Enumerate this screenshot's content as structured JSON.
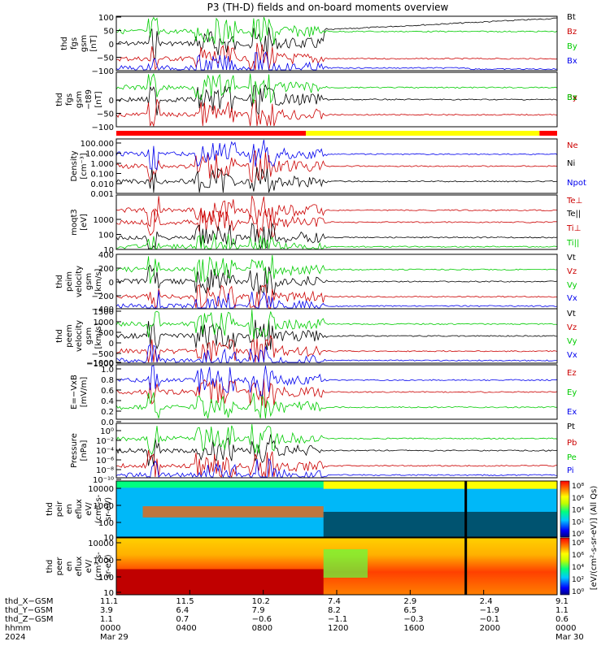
{
  "chart_data": {
    "type": "line",
    "title": "P3 (TH-D) fields and on-board moments overview",
    "x_range": [
      "2024-03-29 00:00",
      "2024-03-30 00:00"
    ],
    "panels": [
      {
        "id": "fgs_gsm",
        "ylabel": [
          "thd",
          "fgs",
          "gsm",
          "[nT]"
        ],
        "yticks": [
          "100",
          "50",
          "0",
          "−50",
          "−100"
        ],
        "legend": [
          {
            "label": "Bt",
            "color": "#000000"
          },
          {
            "label": "Bz",
            "color": "#cc0000"
          },
          {
            "label": "By",
            "color": "#00cc00"
          },
          {
            "label": "Bx",
            "color": "#0000ee"
          }
        ]
      },
      {
        "id": "fgs_gsm_t89",
        "ylabel": [
          "thd",
          "fgs",
          "gsm",
          "−t89",
          "[nT]"
        ],
        "yticks": [
          "0",
          "−50",
          "−100"
        ],
        "legend": [
          {
            "label": "Bx",
            "color": "#000000"
          },
          {
            "label": "By",
            "color": "#cc0000"
          },
          {
            "label": "Bz",
            "color": "#00cc00"
          }
        ]
      },
      {
        "id": "density",
        "ylabel": [
          "Density",
          "[cm⁻³]"
        ],
        "yticks": [
          "100.000",
          "10.000",
          "1.000",
          "0.100",
          "0.010",
          "0.001"
        ],
        "legend": [
          {
            "label": "Ne",
            "color": "#cc0000"
          },
          {
            "label": "Ni",
            "color": "#000000"
          },
          {
            "label": "Npot",
            "color": "#0000ee"
          }
        ]
      },
      {
        "id": "temperature",
        "ylabel": [
          "moqt3",
          "[eV]"
        ],
        "yticks": [
          "1000",
          "100",
          "10"
        ],
        "legend": [
          {
            "label": "Te⊥",
            "color": "#cc0000"
          },
          {
            "label": "Te||",
            "color": "#000000"
          },
          {
            "label": "Ti⊥",
            "color": "#cc0000"
          },
          {
            "label": "Ti||",
            "color": "#00cc00"
          }
        ]
      },
      {
        "id": "peim_velocity",
        "ylabel": [
          "thd",
          "peim",
          "velocity",
          "gsm",
          "[km/s]"
        ],
        "yticks": [
          "400",
          "200",
          "0",
          "−200",
          "−400"
        ],
        "legend": [
          {
            "label": "Vt",
            "color": "#000000"
          },
          {
            "label": "Vz",
            "color": "#cc0000"
          },
          {
            "label": "Vy",
            "color": "#00cc00"
          },
          {
            "label": "Vx",
            "color": "#0000ee"
          }
        ]
      },
      {
        "id": "peem_velocity",
        "ylabel": [
          "thd",
          "peem",
          "velocity",
          "gsm",
          "[km/s]"
        ],
        "yticks": [
          "1500",
          "1000",
          "500",
          "0",
          "−500",
          "−1000",
          "−1500"
        ],
        "legend": [
          {
            "label": "Vt",
            "color": "#000000"
          },
          {
            "label": "Vz",
            "color": "#cc0000"
          },
          {
            "label": "Vy",
            "color": "#00cc00"
          },
          {
            "label": "Vx",
            "color": "#0000ee"
          }
        ]
      },
      {
        "id": "efield",
        "ylabel": [
          "E=−VxB",
          "[mV/m]"
        ],
        "yticks": [
          "1.0",
          "0.8",
          "0.6",
          "0.4",
          "0.2",
          "0.0"
        ],
        "legend": [
          {
            "label": "Ez",
            "color": "#cc0000"
          },
          {
            "label": "Ey",
            "color": "#00cc00"
          },
          {
            "label": "Ex",
            "color": "#0000ee"
          }
        ]
      },
      {
        "id": "pressure",
        "ylabel": [
          "Pressure",
          "[nPa]"
        ],
        "yticks": [
          "10⁰",
          "10⁻²",
          "10⁻⁴",
          "10⁻⁶",
          "10⁻⁸",
          "10⁻¹⁰"
        ],
        "legend": [
          {
            "label": "Pt",
            "color": "#000000"
          },
          {
            "label": "Pb",
            "color": "#cc0000"
          },
          {
            "label": "Pe",
            "color": "#00cc00"
          },
          {
            "label": "Pi",
            "color": "#0000ee"
          }
        ]
      },
      {
        "id": "peir_spec",
        "ylabel": [
          "thd",
          "peir",
          "en",
          "eflux",
          "eV/",
          "(cm²-s-",
          "sr-eV)"
        ],
        "yticks": [
          "10000",
          "1000",
          "100",
          "10"
        ]
      },
      {
        "id": "peer_spec",
        "ylabel": [
          "thd",
          "peer",
          "en",
          "eflux",
          "eV/",
          "(cm²-s-",
          "sr-eV)"
        ],
        "yticks": [
          "10000",
          "1000",
          "100",
          "10"
        ]
      }
    ],
    "colorbar": {
      "ticks": [
        "10⁸",
        "10⁶",
        "10⁴",
        "10²",
        "10⁰"
      ],
      "label": "[eV/(cm²-s-sr-eV)] (All Qs)"
    },
    "x_axis": {
      "row_labels": [
        "thd_X−GSM",
        "thd_Y−GSM",
        "thd_Z−GSM",
        "hhmm",
        "2024"
      ],
      "ticks": [
        {
          "x": "11.1",
          "y": "3.9",
          "z": "1.1",
          "hhmm": "0000",
          "date": "Mar 29"
        },
        {
          "x": "11.5",
          "y": "6.4",
          "z": "0.7",
          "hhmm": "0400",
          "date": ""
        },
        {
          "x": "10.2",
          "y": "7.9",
          "z": "−0.6",
          "hhmm": "0800",
          "date": ""
        },
        {
          "x": "7.4",
          "y": "8.2",
          "z": "−1.1",
          "hhmm": "1200",
          "date": ""
        },
        {
          "x": "2.9",
          "y": "6.5",
          "z": "−0.3",
          "hhmm": "1600",
          "date": ""
        },
        {
          "x": "2.4",
          "y": "−1.9",
          "z": "−0.1",
          "hhmm": "2000",
          "date": ""
        },
        {
          "x": "9.1",
          "y": "1.1",
          "z": "0.6",
          "hhmm": "0000",
          "date": "Mar 30"
        }
      ]
    }
  }
}
